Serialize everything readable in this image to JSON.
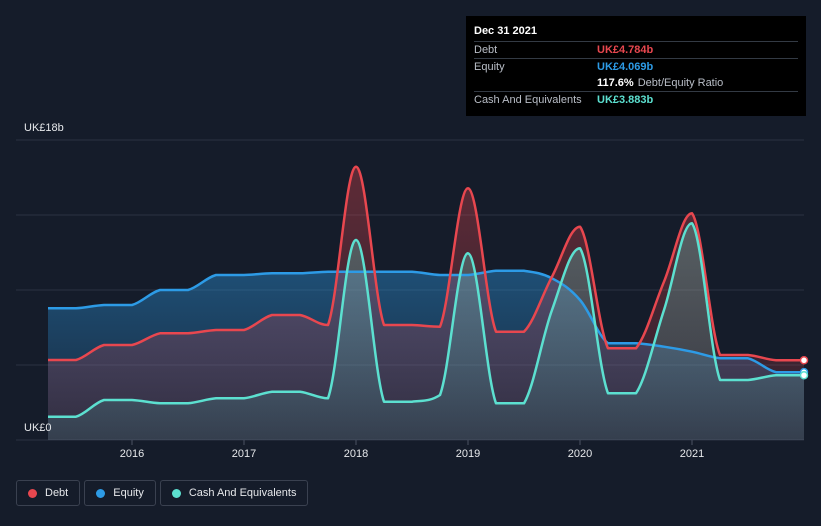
{
  "tooltip": {
    "date": "Dec 31 2021",
    "rows": [
      {
        "label": "Debt",
        "value": "UK£4.784b",
        "color": "#e8474f"
      },
      {
        "label": "Equity",
        "value": "UK£4.069b",
        "color": "#2d9be6"
      },
      {
        "label": "",
        "value": "117.6%",
        "suffix": "Debt/Equity Ratio",
        "color": "#ffffff"
      },
      {
        "label": "Cash And Equivalents",
        "value": "UK£3.883b",
        "color": "#5ce0d0"
      }
    ]
  },
  "legend": [
    {
      "label": "Debt",
      "color": "#e8474f"
    },
    {
      "label": "Equity",
      "color": "#2d9be6"
    },
    {
      "label": "Cash And Equivalents",
      "color": "#5ce0d0"
    }
  ],
  "chart_data": {
    "type": "area",
    "title": "",
    "xlabel": "",
    "ylabel": "",
    "y_top_label": "UK£18b",
    "y_bottom_label": "UK£0",
    "ylim": [
      0,
      18
    ],
    "xlim": [
      2015.25,
      2022.0
    ],
    "x_ticks": [
      2016,
      2017,
      2018,
      2019,
      2020,
      2021
    ],
    "x_tick_labels": [
      "2016",
      "2017",
      "2018",
      "2019",
      "2020",
      "2021"
    ],
    "grid": true,
    "legend_position": "bottom-left",
    "series": [
      {
        "name": "Debt",
        "color": "#e8474f",
        "points": [
          [
            2015.25,
            4.8
          ],
          [
            2015.5,
            4.8
          ],
          [
            2015.75,
            5.7
          ],
          [
            2016.0,
            5.7
          ],
          [
            2016.25,
            6.4
          ],
          [
            2016.5,
            6.4
          ],
          [
            2016.75,
            6.6
          ],
          [
            2017.0,
            6.6
          ],
          [
            2017.25,
            7.5
          ],
          [
            2017.5,
            7.5
          ],
          [
            2017.75,
            6.9
          ],
          [
            2018.0,
            16.4
          ],
          [
            2018.25,
            6.9
          ],
          [
            2018.5,
            6.9
          ],
          [
            2018.75,
            6.8
          ],
          [
            2019.0,
            15.1
          ],
          [
            2019.25,
            6.5
          ],
          [
            2019.5,
            6.5
          ],
          [
            2019.75,
            9.8
          ],
          [
            2020.0,
            12.8
          ],
          [
            2020.25,
            5.5
          ],
          [
            2020.5,
            5.5
          ],
          [
            2020.75,
            9.5
          ],
          [
            2021.0,
            13.6
          ],
          [
            2021.25,
            5.1
          ],
          [
            2021.5,
            5.1
          ],
          [
            2021.75,
            4.784
          ],
          [
            2022.0,
            4.784
          ]
        ]
      },
      {
        "name": "Equity",
        "color": "#2d9be6",
        "points": [
          [
            2015.25,
            7.9
          ],
          [
            2015.5,
            7.9
          ],
          [
            2015.75,
            8.1
          ],
          [
            2016.0,
            8.1
          ],
          [
            2016.25,
            9.0
          ],
          [
            2016.5,
            9.0
          ],
          [
            2016.75,
            9.9
          ],
          [
            2017.0,
            9.9
          ],
          [
            2017.25,
            10.0
          ],
          [
            2017.5,
            10.0
          ],
          [
            2017.75,
            10.1
          ],
          [
            2018.0,
            10.1
          ],
          [
            2018.25,
            10.1
          ],
          [
            2018.5,
            10.1
          ],
          [
            2018.75,
            9.9
          ],
          [
            2019.0,
            9.9
          ],
          [
            2019.25,
            10.15
          ],
          [
            2019.5,
            10.15
          ],
          [
            2019.75,
            9.7
          ],
          [
            2020.0,
            8.4
          ],
          [
            2020.25,
            5.8
          ],
          [
            2020.5,
            5.8
          ],
          [
            2020.75,
            5.6
          ],
          [
            2021.0,
            5.3
          ],
          [
            2021.25,
            4.9
          ],
          [
            2021.5,
            4.9
          ],
          [
            2021.75,
            4.069
          ],
          [
            2022.0,
            4.069
          ]
        ]
      },
      {
        "name": "Cash And Equivalents",
        "color": "#5ce0d0",
        "points": [
          [
            2015.25,
            1.4
          ],
          [
            2015.5,
            1.4
          ],
          [
            2015.75,
            2.4
          ],
          [
            2016.0,
            2.4
          ],
          [
            2016.25,
            2.2
          ],
          [
            2016.5,
            2.2
          ],
          [
            2016.75,
            2.5
          ],
          [
            2017.0,
            2.5
          ],
          [
            2017.25,
            2.9
          ],
          [
            2017.5,
            2.9
          ],
          [
            2017.75,
            2.5
          ],
          [
            2018.0,
            12.0
          ],
          [
            2018.25,
            2.3
          ],
          [
            2018.5,
            2.3
          ],
          [
            2018.75,
            2.7
          ],
          [
            2019.0,
            11.2
          ],
          [
            2019.25,
            2.2
          ],
          [
            2019.5,
            2.2
          ],
          [
            2019.75,
            7.8
          ],
          [
            2020.0,
            11.5
          ],
          [
            2020.25,
            2.8
          ],
          [
            2020.5,
            2.8
          ],
          [
            2020.75,
            7.8
          ],
          [
            2021.0,
            13.0
          ],
          [
            2021.25,
            3.6
          ],
          [
            2021.5,
            3.6
          ],
          [
            2021.75,
            3.883
          ],
          [
            2022.0,
            3.883
          ]
        ]
      }
    ]
  }
}
